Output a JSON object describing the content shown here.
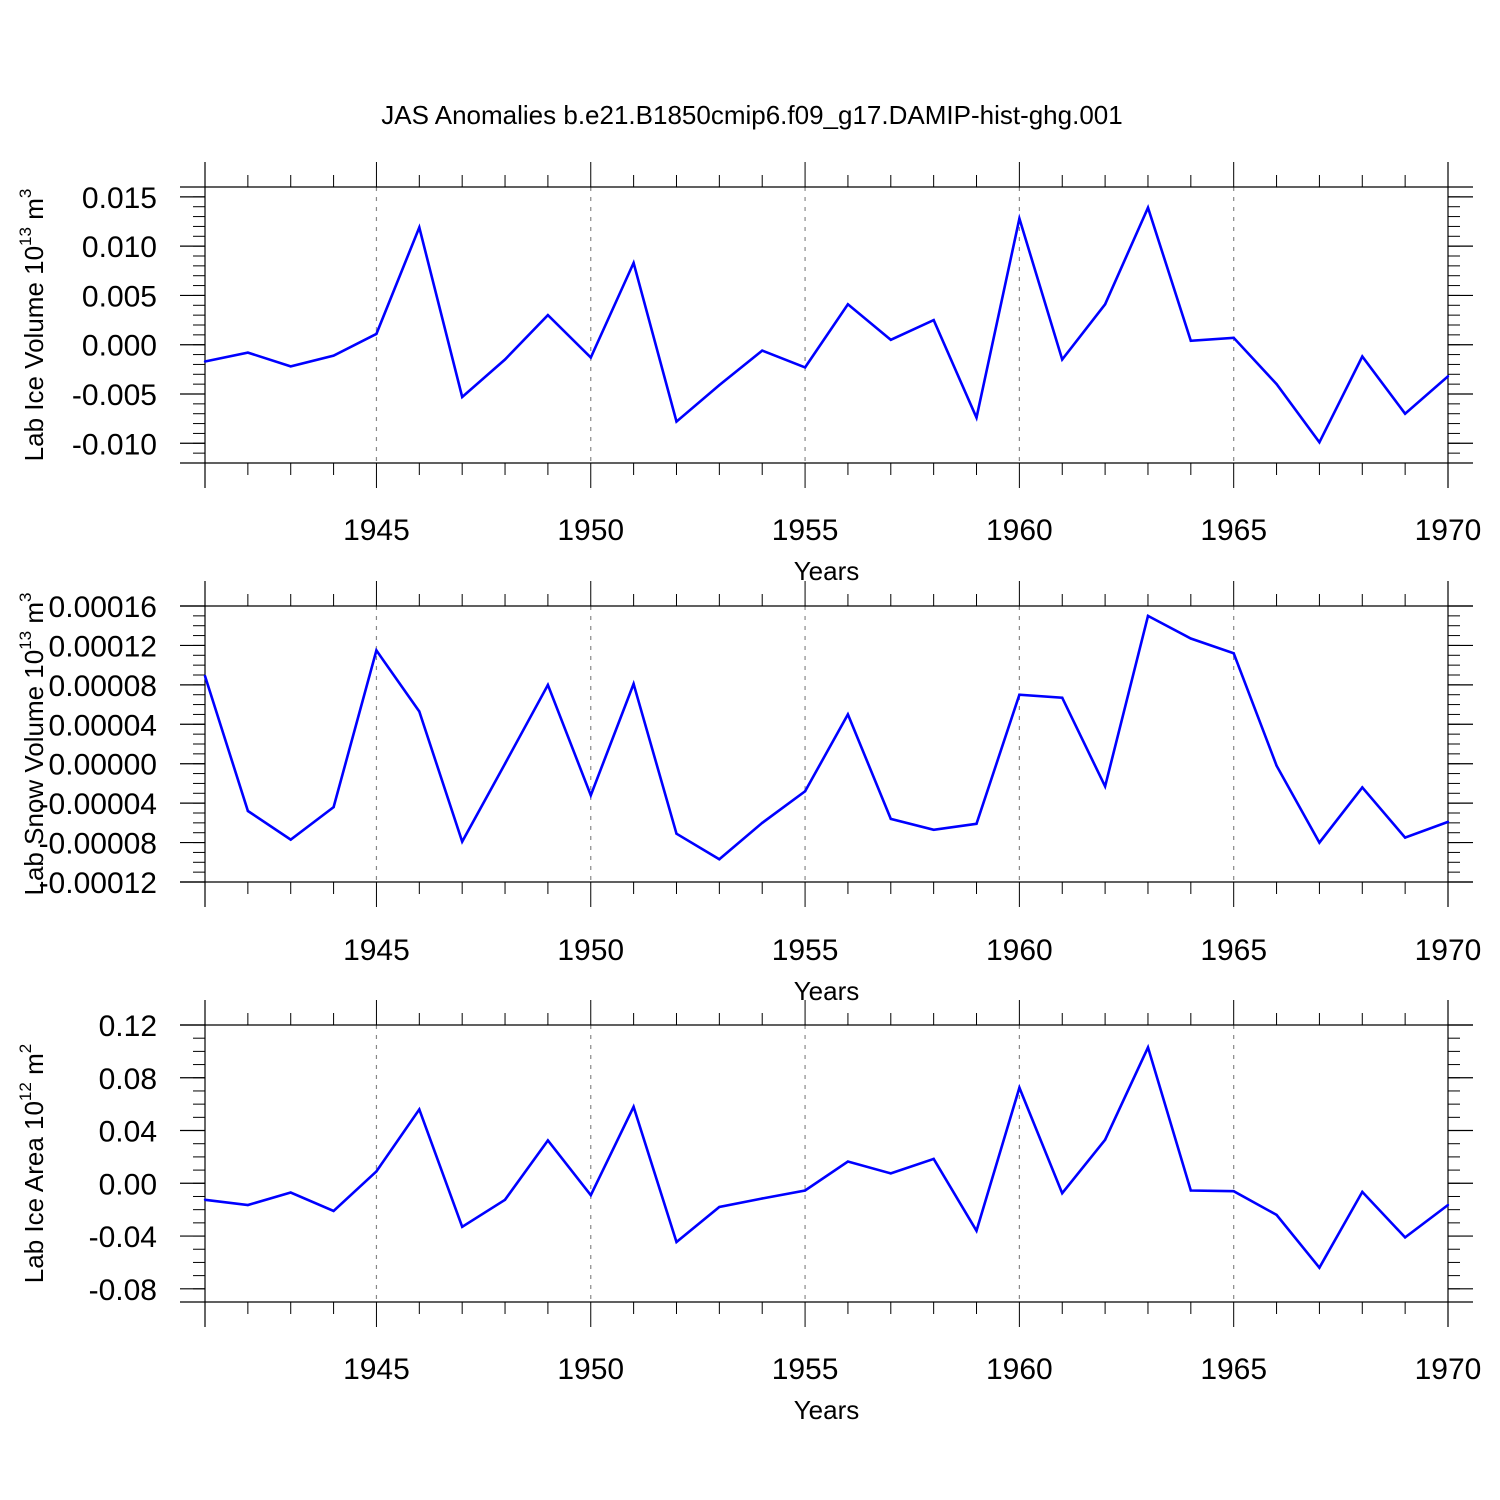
{
  "title": "JAS Anomalies b.e21.B1850cmip6.f09_g17.DAMIP-hist-ghg.001",
  "colors": {
    "line": "#0000ff",
    "axis": "#000000",
    "grid": "#888888"
  },
  "chart_data": [
    {
      "type": "line",
      "ylabel_main": "Lab Ice Volume 10",
      "ylabel_exp": "13",
      "ylabel_unit": " m",
      "ylabel_unit_exp": "3",
      "xlabel": "Years",
      "xlim": [
        1941,
        1970
      ],
      "ylim": [
        -0.012,
        0.016
      ],
      "yticks": [
        -0.01,
        -0.005,
        0.0,
        0.005,
        0.01,
        0.015
      ],
      "ytick_labels": [
        "-0.010",
        "-0.005",
        "0.000",
        "0.005",
        "0.010",
        "0.015"
      ],
      "yminor_step": 0.001,
      "xticks": [
        1945,
        1950,
        1955,
        1960,
        1965,
        1970
      ],
      "xtick_labels": [
        "1945",
        "1950",
        "1955",
        "1960",
        "1965",
        "1970"
      ],
      "x": [
        1941,
        1942,
        1943,
        1944,
        1945,
        1946,
        1947,
        1948,
        1949,
        1950,
        1951,
        1952,
        1953,
        1954,
        1955,
        1956,
        1957,
        1958,
        1959,
        1960,
        1961,
        1962,
        1963,
        1964,
        1965,
        1966,
        1967,
        1968,
        1969,
        1970
      ],
      "values": [
        -0.0017,
        -0.0008,
        -0.0022,
        -0.0011,
        0.0011,
        0.0119,
        -0.0053,
        -0.0015,
        0.003,
        -0.0013,
        0.0083,
        -0.0078,
        -0.0041,
        -0.0006,
        -0.0023,
        0.0041,
        0.0005,
        0.0025,
        -0.0074,
        0.0128,
        -0.0015,
        0.0041,
        0.0139,
        0.0004,
        0.0007,
        -0.004,
        -0.0099,
        -0.0012,
        -0.007,
        -0.0032
      ]
    },
    {
      "type": "line",
      "ylabel_main": "Lab Snow Volume 10",
      "ylabel_exp": "13",
      "ylabel_unit": " m",
      "ylabel_unit_exp": "3",
      "xlabel": "Years",
      "xlim": [
        1941,
        1970
      ],
      "ylim": [
        -0.00012,
        0.00016
      ],
      "yticks": [
        -0.00012,
        -8e-05,
        -4e-05,
        0.0,
        4e-05,
        8e-05,
        0.00012,
        0.00016
      ],
      "ytick_labels": [
        "-0.00012",
        "-0.00008",
        "-0.00004",
        "0.00000",
        "0.00004",
        "0.00008",
        "0.00012",
        "0.00016"
      ],
      "yminor_step": 1e-05,
      "xticks": [
        1945,
        1950,
        1955,
        1960,
        1965,
        1970
      ],
      "xtick_labels": [
        "1945",
        "1950",
        "1955",
        "1960",
        "1965",
        "1970"
      ],
      "x": [
        1941,
        1942,
        1943,
        1944,
        1945,
        1946,
        1947,
        1948,
        1949,
        1950,
        1951,
        1952,
        1953,
        1954,
        1955,
        1956,
        1957,
        1958,
        1959,
        1960,
        1961,
        1962,
        1963,
        1964,
        1965,
        1966,
        1967,
        1968,
        1969,
        1970
      ],
      "values": [
        8.9e-05,
        -4.8e-05,
        -7.7e-05,
        -4.4e-05,
        0.000115,
        5.3e-05,
        -7.9e-05,
        0.0,
        8e-05,
        -3.2e-05,
        8.1e-05,
        -7.1e-05,
        -9.7e-05,
        -6e-05,
        -2.8e-05,
        5e-05,
        -5.6e-05,
        -6.7e-05,
        -6.1e-05,
        7e-05,
        6.7e-05,
        -2.3e-05,
        0.00015,
        0.000127,
        0.000112,
        -2e-06,
        -8e-05,
        -2.4e-05,
        -7.5e-05,
        -5.9e-05
      ]
    },
    {
      "type": "line",
      "ylabel_main": "Lab Ice Area 10",
      "ylabel_exp": "12",
      "ylabel_unit": " m",
      "ylabel_unit_exp": "2",
      "xlabel": "Years",
      "xlim": [
        1941,
        1970
      ],
      "ylim": [
        -0.09,
        0.12
      ],
      "yticks": [
        -0.08,
        -0.04,
        0.0,
        0.04,
        0.08,
        0.12
      ],
      "ytick_labels": [
        "-0.08",
        "-0.04",
        "0.00",
        "0.04",
        "0.08",
        "0.12"
      ],
      "yminor_step": 0.01,
      "xticks": [
        1945,
        1950,
        1955,
        1960,
        1965,
        1970
      ],
      "xtick_labels": [
        "1945",
        "1950",
        "1955",
        "1960",
        "1965",
        "1970"
      ],
      "x": [
        1941,
        1942,
        1943,
        1944,
        1945,
        1946,
        1947,
        1948,
        1949,
        1950,
        1951,
        1952,
        1953,
        1954,
        1955,
        1956,
        1957,
        1958,
        1959,
        1960,
        1961,
        1962,
        1963,
        1964,
        1965,
        1966,
        1967,
        1968,
        1969,
        1970
      ],
      "values": [
        -0.0125,
        -0.0165,
        -0.007,
        -0.021,
        0.009,
        0.056,
        -0.033,
        -0.0125,
        0.0325,
        -0.009,
        0.058,
        -0.0445,
        -0.018,
        -0.0115,
        -0.0055,
        0.0165,
        0.0075,
        0.0185,
        -0.036,
        0.0725,
        -0.0075,
        0.033,
        0.103,
        -0.0055,
        -0.006,
        -0.024,
        -0.064,
        -0.0065,
        -0.041,
        -0.0165
      ]
    }
  ]
}
